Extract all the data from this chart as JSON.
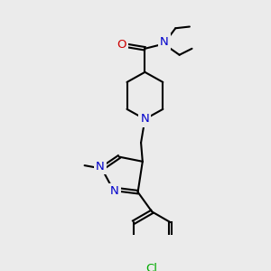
{
  "bg_color": "#ebebeb",
  "bond_color": "#000000",
  "atom_colors": {
    "N": "#0000cc",
    "O": "#cc0000",
    "Cl": "#00aa00",
    "C": "#000000"
  },
  "bond_lw": 1.5,
  "font_size": 9.5
}
